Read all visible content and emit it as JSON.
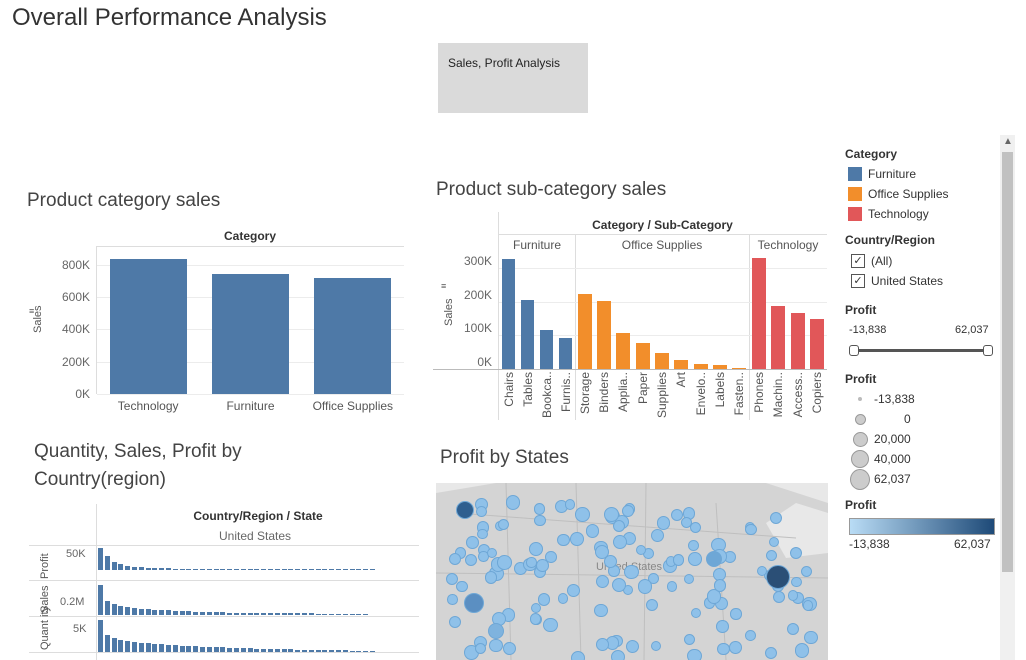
{
  "dashboard": {
    "title": "Overall Performance Analysis",
    "button_label": "Sales, Profit Analysis"
  },
  "colors": {
    "furniture": "#4e79a7",
    "office_supplies": "#f28e2b",
    "technology": "#e15759"
  },
  "category_sales": {
    "title": "Product category sales",
    "header": "Category",
    "ylabel": "Sales",
    "yticks": [
      "800K",
      "600K",
      "400K",
      "200K",
      "0K"
    ]
  },
  "subcategory_sales": {
    "title": "Product sub-category sales",
    "header": "Category / Sub-Category",
    "groups": [
      "Furniture",
      "Office Supplies",
      "Technology"
    ],
    "ylabel": "Sales",
    "yticks": [
      "300K",
      "200K",
      "100K",
      "0K"
    ]
  },
  "qsp": {
    "title": "Quantity, Sales, Profit by Country(region)",
    "header": "Country/Region / State",
    "subheader": "United States",
    "rows": [
      "Profit",
      "Sales",
      "Quant ity"
    ],
    "ticks": [
      "50K",
      "0.2M",
      "5K"
    ]
  },
  "map": {
    "title": "Profit by States",
    "label": "United States"
  },
  "legend": {
    "category_title": "Category",
    "categories": [
      "Furniture",
      "Office Supplies",
      "Technology"
    ],
    "country_title": "Country/Region",
    "country_items": [
      "(All)",
      "United States"
    ],
    "profit_filter_title": "Profit",
    "profit_min": "-13,838",
    "profit_max": "62,037",
    "size_title": "Profit",
    "size_items": [
      "-13,838",
      "0",
      "20,000",
      "40,000",
      "62,037"
    ],
    "color_title": "Profit",
    "color_min": "-13,838",
    "color_max": "62,037"
  },
  "chart_data": [
    {
      "type": "bar",
      "title": "Product category sales",
      "xlabel": "Category",
      "ylabel": "Sales",
      "categories": [
        "Technology",
        "Furniture",
        "Office Supplies"
      ],
      "values": [
        836000,
        742000,
        719000
      ],
      "ylim": [
        0,
        880000
      ]
    },
    {
      "type": "bar",
      "title": "Product sub-category sales",
      "xlabel": "Category / Sub-Category",
      "ylabel": "Sales",
      "groups": [
        {
          "name": "Furniture",
          "categories": [
            "Chairs",
            "Tables",
            "Bookca..",
            "Furnis.."
          ],
          "values": [
            328000,
            207000,
            115000,
            92000
          ]
        },
        {
          "name": "Office Supplies",
          "categories": [
            "Storage",
            "Binders",
            "Applia..",
            "Paper",
            "Supplies",
            "Art",
            "Envelo..",
            "Labels",
            "Fasten.."
          ],
          "values": [
            224000,
            203000,
            107000,
            78000,
            47000,
            27000,
            16000,
            12000,
            3000
          ]
        },
        {
          "name": "Technology",
          "categories": [
            "Phones",
            "Machin..",
            "Access..",
            "Copiers"
          ],
          "values": [
            330000,
            189000,
            167000,
            150000
          ]
        }
      ],
      "ylim": [
        0,
        340000
      ]
    }
  ]
}
